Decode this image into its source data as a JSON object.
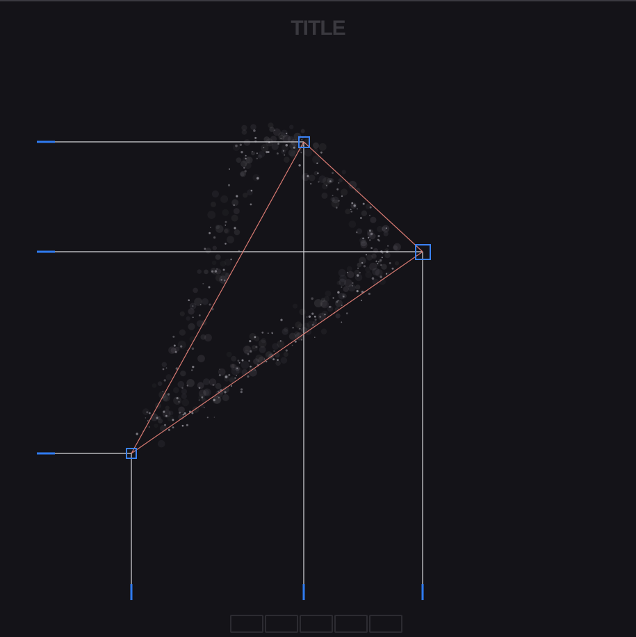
{
  "title": "TITLE",
  "colors": {
    "background": "#141318",
    "guide_line": "#d8d8dc",
    "edge": "#d97a72",
    "handle": "#3b82f6",
    "tick": "#2f7bf0",
    "particle": "#9a98a0"
  },
  "toolbar": {
    "buttons": [
      "",
      "",
      "",
      "",
      ""
    ]
  }
}
